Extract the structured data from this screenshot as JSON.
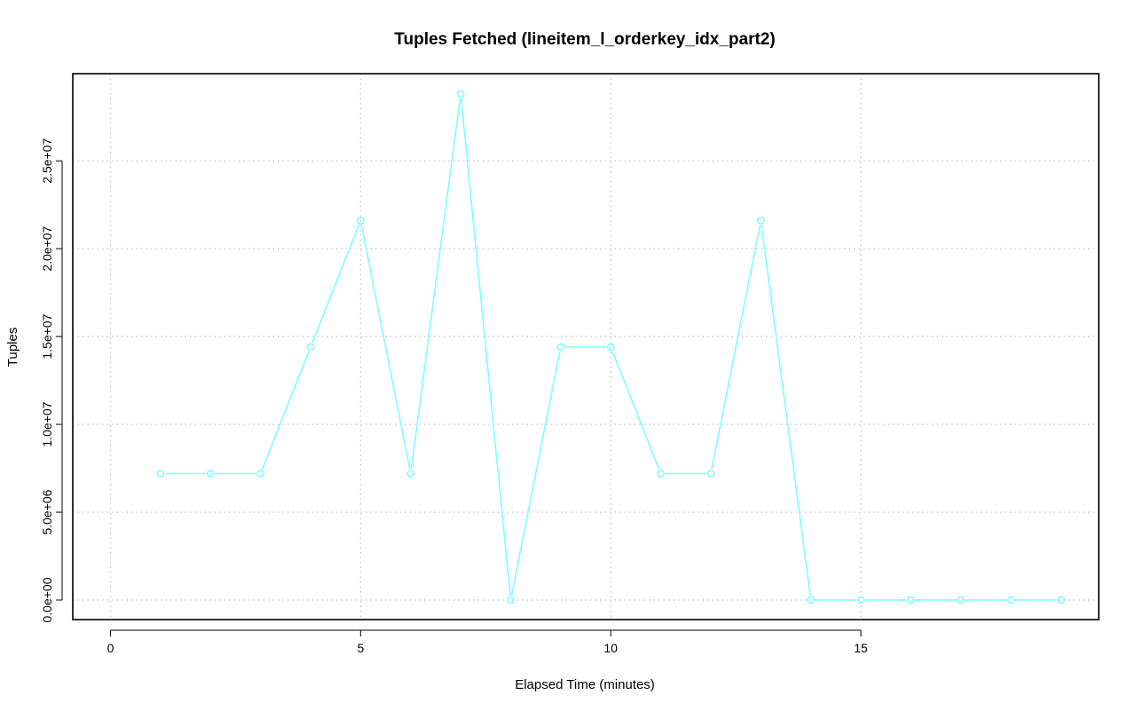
{
  "chart_data": {
    "type": "line",
    "title": "Tuples Fetched (lineitem_l_orderkey_idx_part2)",
    "xlabel": "Elapsed Time (minutes)",
    "ylabel": "Tuples",
    "xlim": [
      0,
      19
    ],
    "ylim": [
      0,
      28800000
    ],
    "x_ticks": [
      0,
      5,
      10,
      15
    ],
    "x_tick_labels": [
      "0",
      "5",
      "10",
      "15"
    ],
    "y_ticks": [
      0,
      5000000,
      10000000,
      15000000,
      20000000,
      25000000
    ],
    "y_tick_labels": [
      "0.0e+00",
      "5.0e+06",
      "1.0e+07",
      "1.5e+07",
      "2.0e+07",
      "2.5e+07"
    ],
    "grid": true,
    "series": [
      {
        "color": "#7fffff",
        "marker": "open-circle",
        "x": [
          1,
          2,
          3,
          4,
          5,
          6,
          7,
          8,
          9,
          10,
          11,
          12,
          13,
          14,
          15,
          16,
          17,
          18,
          19
        ],
        "values": [
          7200000,
          7200000,
          7200000,
          14400000,
          21600000,
          7200000,
          28800000,
          0,
          14400000,
          14400000,
          7200000,
          7200000,
          21600000,
          0,
          0,
          0,
          0,
          0,
          0
        ]
      }
    ]
  }
}
